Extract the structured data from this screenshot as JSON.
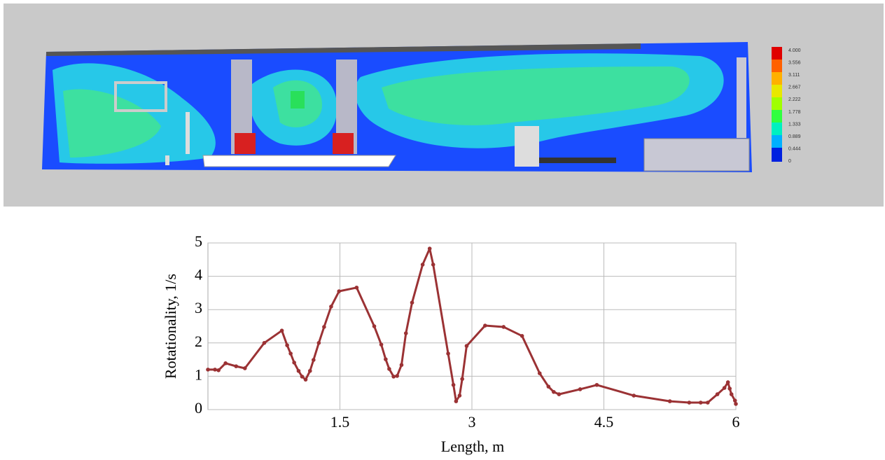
{
  "colorbar": {
    "labels": [
      "4.000",
      "3.556",
      "3.111",
      "2.667",
      "2.222",
      "1.778",
      "1.333",
      "0.889",
      "0.444",
      "0"
    ]
  },
  "chart_data": {
    "type": "line",
    "x_label": "Length, m",
    "y_label": "Rotationality, 1/s",
    "xlim": [
      0,
      6
    ],
    "ylim": [
      0,
      5
    ],
    "xticks": [
      1.5,
      3,
      4.5,
      6
    ],
    "yticks": [
      0,
      1,
      2,
      3,
      4,
      5
    ],
    "grid": true,
    "series": [
      {
        "color": "#9b3234",
        "x": [
          0,
          0.08,
          0.12,
          0.2,
          0.32,
          0.42,
          0.64,
          0.84,
          0.9,
          0.94,
          0.98,
          1.03,
          1.07,
          1.11,
          1.16,
          1.2,
          1.26,
          1.32,
          1.4,
          1.49,
          1.69,
          1.89,
          1.97,
          2.02,
          2.06,
          2.11,
          2.15,
          2.2,
          2.25,
          2.32,
          2.44,
          2.52,
          2.56,
          2.73,
          2.79,
          2.82,
          2.86,
          2.89,
          2.94,
          3.15,
          3.36,
          3.57,
          3.77,
          3.87,
          3.93,
          3.99,
          4.23,
          4.42,
          4.84,
          5.25,
          5.47,
          5.6,
          5.68,
          5.79,
          5.87,
          5.91,
          5.93,
          5.95,
          5.99,
          6.0
        ],
        "values": [
          1.2,
          1.2,
          1.18,
          1.39,
          1.3,
          1.24,
          2.0,
          2.37,
          1.93,
          1.68,
          1.41,
          1.16,
          0.99,
          0.9,
          1.16,
          1.49,
          2.0,
          2.48,
          3.09,
          3.55,
          3.66,
          2.5,
          1.95,
          1.51,
          1.22,
          0.99,
          1.01,
          1.34,
          2.29,
          3.21,
          4.35,
          4.83,
          4.35,
          1.68,
          0.74,
          0.25,
          0.42,
          0.92,
          1.91,
          2.52,
          2.48,
          2.21,
          1.09,
          0.69,
          0.53,
          0.46,
          0.61,
          0.74,
          0.42,
          0.25,
          0.21,
          0.21,
          0.21,
          0.46,
          0.65,
          0.82,
          0.63,
          0.46,
          0.27,
          0.17
        ]
      }
    ]
  }
}
